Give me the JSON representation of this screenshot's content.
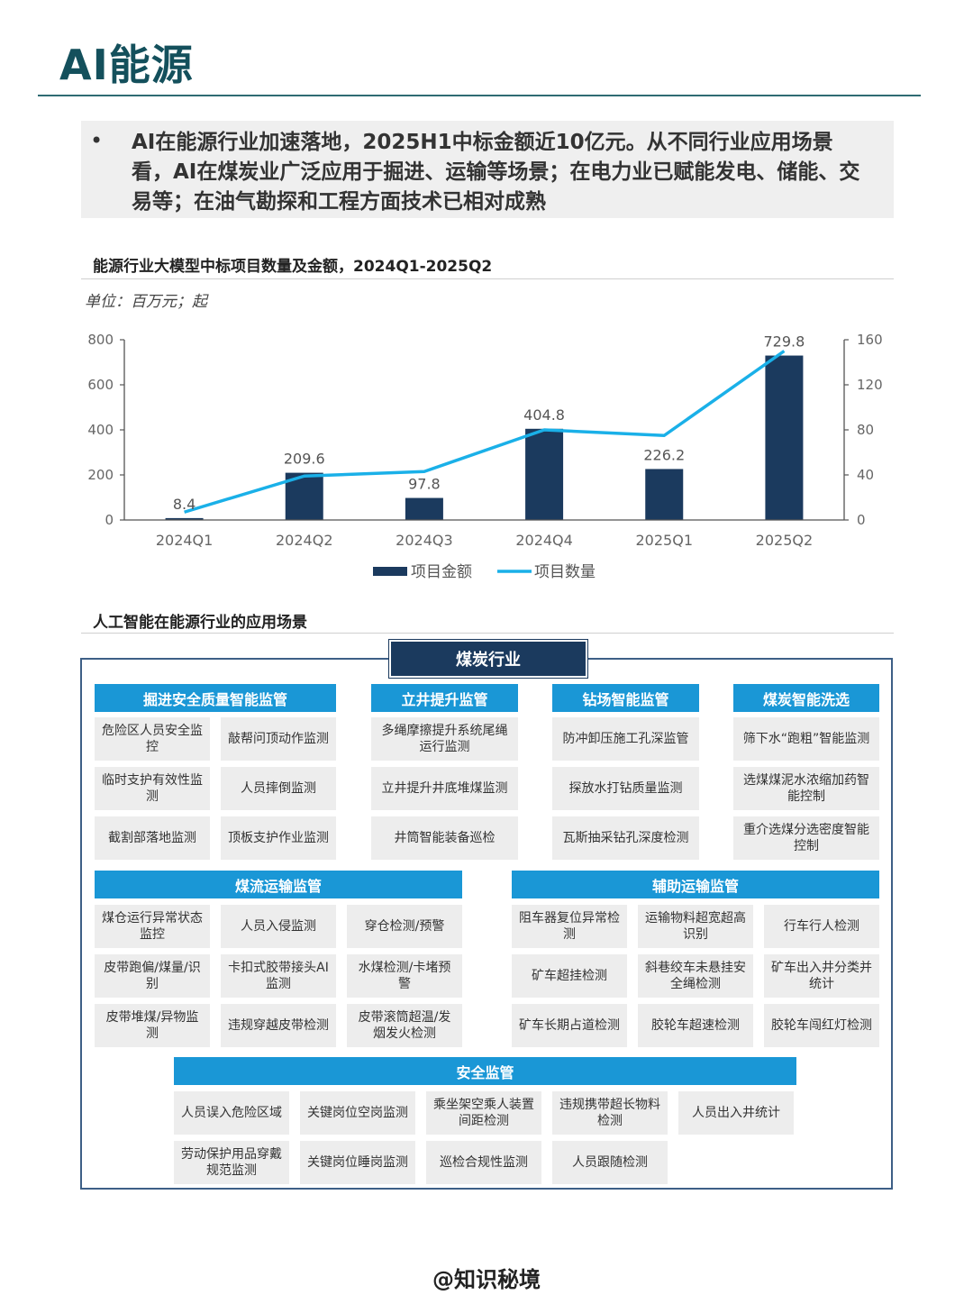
{
  "header": {
    "title": "AI能源",
    "summary_bullet": "•",
    "summary": "AI在能源行业加速落地，2025H1中标金额近10亿元。从不同行业应用场景看，AI在煤炭业广泛应用于掘进、运输等场景；在电力业已赋能发电、储能、交易等；在油气勘探和工程方面技术已相对成熟"
  },
  "chart_section": {
    "title": "能源行业大模型中标项目数量及金额，2024Q1-2025Q2",
    "unit": "单位：百万元；起"
  },
  "chart_data": {
    "type": "bar",
    "title": "能源行业大模型中标项目数量及金额，2024Q1-2025Q2",
    "categories": [
      "2024Q1",
      "2024Q2",
      "2024Q3",
      "2024Q4",
      "2025Q1",
      "2025Q2"
    ],
    "series": [
      {
        "name": "项目金额",
        "type": "bar",
        "axis": "left",
        "color": "#1b3a5e",
        "values": [
          8.4,
          209.6,
          97.8,
          404.8,
          226.2,
          729.8
        ],
        "labels": [
          "8.4",
          "209.6",
          "97.8",
          "404.8",
          "226.2",
          "729.8"
        ]
      },
      {
        "name": "项目数量",
        "type": "line",
        "axis": "right",
        "color": "#1ab0e8",
        "values": [
          7,
          39,
          43,
          80,
          75,
          150
        ]
      }
    ],
    "ylim": [
      0,
      800
    ],
    "yticks": [
      "0",
      "200",
      "400",
      "600",
      "800"
    ],
    "y2lim": [
      0,
      160
    ],
    "y2ticks": [
      "0",
      "40",
      "80",
      "120",
      "160"
    ],
    "legend_position": "bottom-center"
  },
  "scenario_section": {
    "title": "人工智能在能源行业的应用场景",
    "industry": "煤炭行业",
    "top_groups": [
      {
        "name": "掘进安全质量智能监管",
        "items": [
          "危险区人员安全监控",
          "敲帮问顶动作监测",
          "临时支护有效性监测",
          "人员摔倒监测",
          "截割部落地监测",
          "顶板支护作业监测"
        ]
      },
      {
        "name": "立井提升监管",
        "items": [
          "多绳摩擦提升系统尾绳运行监测",
          "立井提升井底堆煤监测",
          "井筒智能装备巡检"
        ]
      },
      {
        "name": "钻场智能监管",
        "items": [
          "防冲卸压施工孔深监管",
          "探放水打钻质量监测",
          "瓦斯抽采钻孔深度检测"
        ]
      },
      {
        "name": "煤炭智能洗选",
        "items": [
          "筛下水“跑粗”智能监测",
          "选煤煤泥水浓缩加药智能控制",
          "重介选煤分选密度智能控制"
        ]
      }
    ],
    "mid_groups": [
      {
        "name": "煤流运输监管",
        "items": [
          "煤仓运行异常状态监控",
          "人员入侵监测",
          "穿仓检测/预警",
          "皮带跑偏/煤量/识别",
          "卡扣式胶带接头AI监测",
          "水煤检测/卡堵预警",
          "皮带堆煤/异物监测",
          "违规穿越皮带检测",
          "皮带滚筒超温/发烟发火检测"
        ]
      },
      {
        "name": "辅助运输监管",
        "items": [
          "阻车器复位异常检测",
          "运输物料超宽超高识别",
          "行车行人检测",
          "矿车超挂检测",
          "斜巷绞车未悬挂安全绳检测",
          "矿车出入井分类并统计",
          "矿车长期占道检测",
          "胶轮车超速检测",
          "胶轮车闯红灯检测"
        ]
      }
    ],
    "safety_group": {
      "name": "安全监管",
      "items": [
        "人员误入危险区域",
        "关键岗位空岗监测",
        "乘坐架空乘人装置间距检测",
        "违规携带超长物料检测",
        "人员出入井统计",
        "劳动保护用品穿戴规范监测",
        "关键岗位睡岗监测",
        "巡检合规性监测",
        "人员跟随检测"
      ]
    }
  },
  "footer": {
    "credit": "@知识秘境"
  }
}
